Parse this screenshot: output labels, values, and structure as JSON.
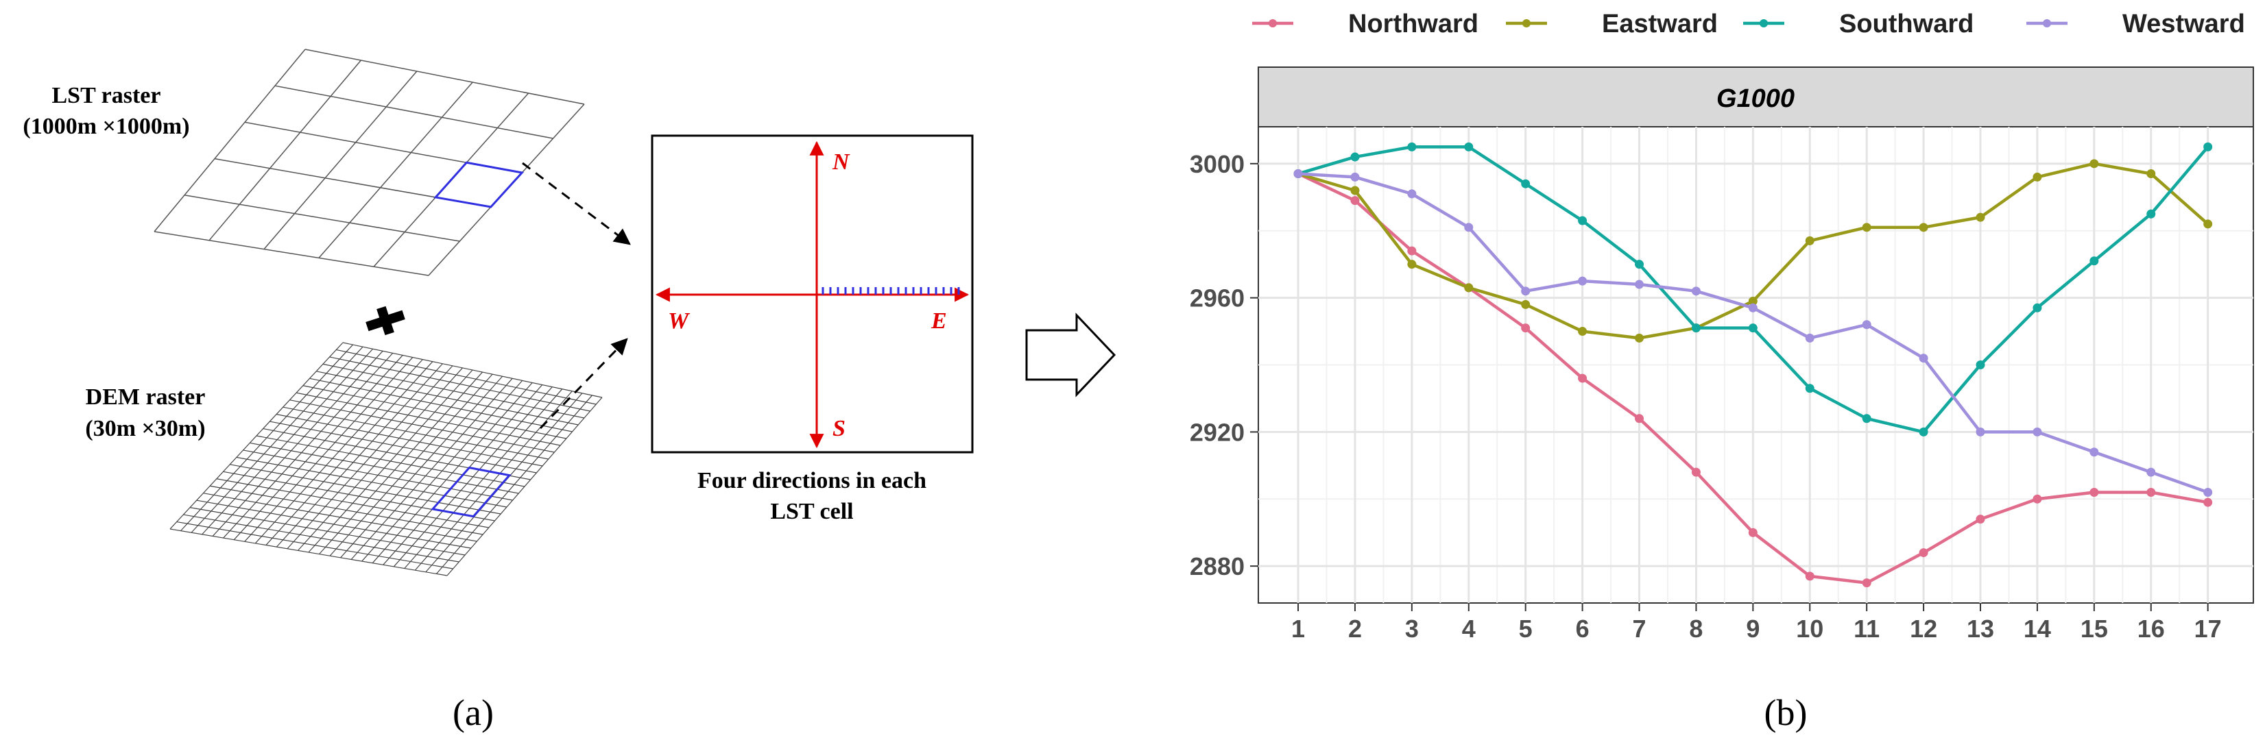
{
  "panel_a": {
    "lst_label_line1": "LST raster",
    "lst_label_line2": "(1000m ×1000m)",
    "dem_label_line1": "DEM raster",
    "dem_label_line2": "(30m ×30m)",
    "dir_n": "N",
    "dir_s": "S",
    "dir_w": "W",
    "dir_e": "E",
    "caption_line1": "Four directions in each",
    "caption_line2": "LST cell",
    "sublabel": "(a)"
  },
  "panel_b": {
    "sublabel": "(b)"
  },
  "colors": {
    "Northward": "#e06b8b",
    "Eastward": "#9a9a1a",
    "Southward": "#13a89e",
    "Westward": "#9f8fdc",
    "red_axis": "#e00000",
    "blue_box": "#3030e0",
    "strip_bg": "#d9d9d9"
  },
  "chart_data": {
    "type": "line",
    "facet_title": "G1000",
    "xlabel": "",
    "ylabel": "",
    "x": [
      1,
      2,
      3,
      4,
      5,
      6,
      7,
      8,
      9,
      10,
      11,
      12,
      13,
      14,
      15,
      16,
      17
    ],
    "xlim": [
      0.3,
      17.8
    ],
    "ylim": [
      2869,
      3011
    ],
    "yticks": [
      2880,
      2920,
      2960,
      3000
    ],
    "grid": true,
    "legend_position": "top",
    "series": [
      {
        "name": "Northward",
        "values": [
          2997,
          2989,
          2974,
          2963,
          2951,
          2936,
          2924,
          2908,
          2890,
          2877,
          2875,
          2884,
          2894,
          2900,
          2902,
          2902,
          2899
        ]
      },
      {
        "name": "Eastward",
        "values": [
          2997,
          2992,
          2970,
          2963,
          2958,
          2950,
          2948,
          2951,
          2959,
          2977,
          2981,
          2981,
          2984,
          2996,
          3000,
          2997,
          2982
        ]
      },
      {
        "name": "Southward",
        "values": [
          2997,
          3002,
          3005,
          3005,
          2994,
          2983,
          2970,
          2951,
          2951,
          2933,
          2924,
          2920,
          2940,
          2957,
          2971,
          2985,
          3005
        ]
      },
      {
        "name": "Westward",
        "values": [
          2997,
          2996,
          2991,
          2981,
          2962,
          2965,
          2964,
          2962,
          2957,
          2948,
          2952,
          2942,
          2920,
          2920,
          2914,
          2908,
          2902
        ]
      }
    ]
  }
}
